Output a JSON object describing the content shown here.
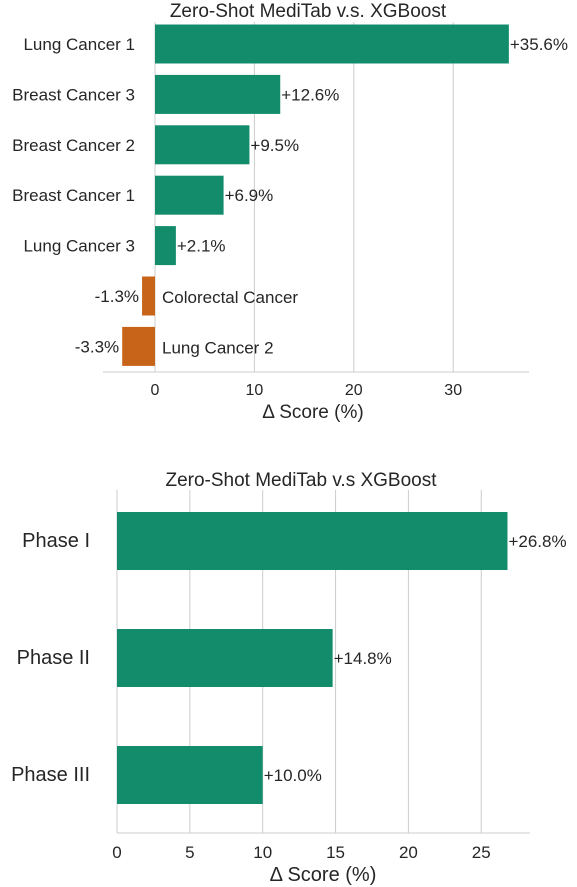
{
  "chart_data": [
    {
      "type": "bar",
      "orientation": "horizontal",
      "title": "Zero-Shot MediTab v.s. XGBoost",
      "xlabel": "Δ Score (%)",
      "ylabel": "",
      "xlim": [
        -5,
        37
      ],
      "xticks": [
        0,
        10,
        20,
        30
      ],
      "grid": "vertical",
      "categories": [
        "Lung Cancer 1",
        "Breast Cancer 3",
        "Breast Cancer 2",
        "Breast Cancer 1",
        "Lung Cancer 3",
        "Colorectal Cancer",
        "Lung Cancer 2"
      ],
      "values": [
        35.6,
        12.6,
        9.5,
        6.9,
        2.1,
        -1.3,
        -3.3
      ],
      "data_labels": [
        "+35.6%",
        "+12.6%",
        "+9.5%",
        "+6.9%",
        "+2.1%",
        "-1.3%",
        "-3.3%"
      ],
      "colors": {
        "positive": "#138c6c",
        "negative": "#c8631a"
      }
    },
    {
      "type": "bar",
      "orientation": "horizontal",
      "title": "Zero-Shot MediTab v.s XGBoost",
      "xlabel": "Δ Score (%)",
      "ylabel": "",
      "xlim": [
        0,
        28.2
      ],
      "xticks": [
        0,
        5,
        10,
        15,
        20,
        25
      ],
      "grid": "vertical",
      "categories": [
        "Phase I",
        "Phase II",
        "Phase III"
      ],
      "values": [
        26.8,
        14.8,
        10.0
      ],
      "data_labels": [
        "+26.8%",
        "+14.8%",
        "+10.0%"
      ],
      "colors": {
        "positive": "#138c6c",
        "negative": "#c8631a"
      }
    }
  ]
}
